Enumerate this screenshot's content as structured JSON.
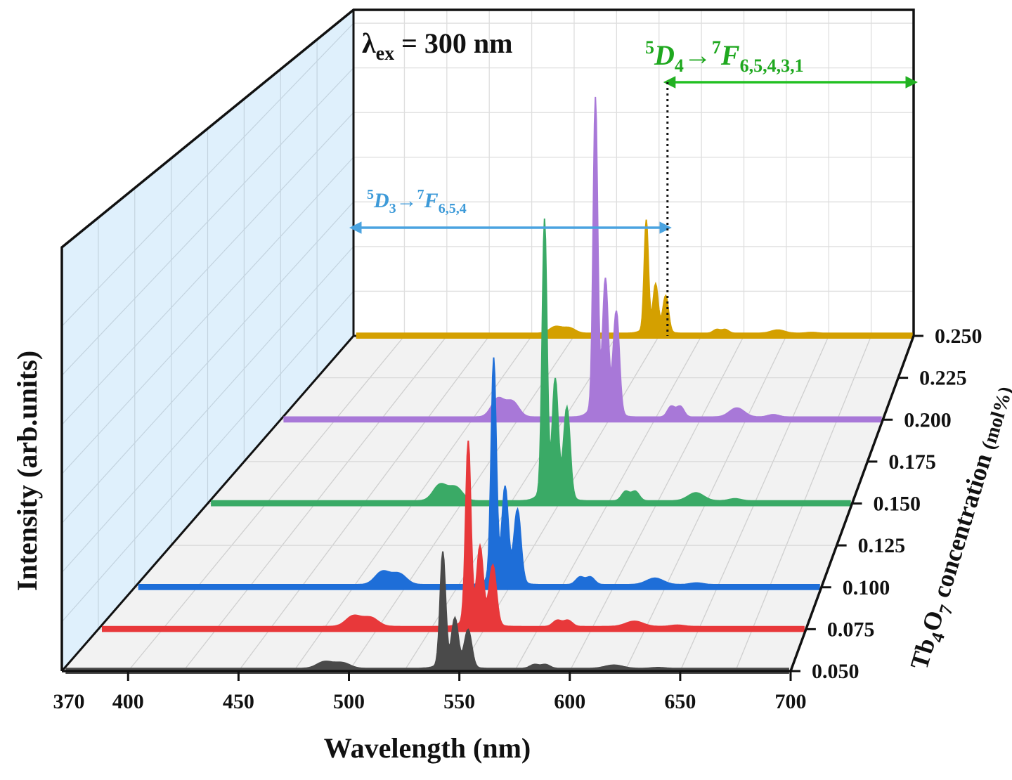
{
  "chart_data": {
    "type": "line",
    "style": "3D waterfall, filled spectra",
    "title": "",
    "excitation": {
      "symbol": "λ",
      "subscript": "ex",
      "text": " = 300 nm"
    },
    "xlabel": "Wavelength (nm)",
    "ylabel": "Intensity (arb.units)",
    "zlabel": {
      "main": "Tb",
      "sub1": "4",
      "mid": "O",
      "sub2": "7",
      "rest": " concentration ",
      "unit": "(mol%)"
    },
    "xlim": [
      370,
      700
    ],
    "x_ticks": [
      370,
      400,
      450,
      500,
      550,
      600,
      650,
      700
    ],
    "x_tick_labels": [
      "370",
      "400",
      "450",
      "500",
      "550",
      "600",
      "650",
      "700"
    ],
    "z_ticks": [
      "0.050",
      "0.075",
      "0.100",
      "0.125",
      "0.150",
      "0.175",
      "0.200",
      "0.225",
      "0.250"
    ],
    "annotations": [
      {
        "id": "d3",
        "sup1": "5",
        "main1": "D",
        "sub1": "3",
        "arrow": "→",
        "sup2": "7",
        "main2": "F",
        "sub2": "6,5,4",
        "range_nm": [
          370,
          555
        ],
        "color": "#4aa3e0"
      },
      {
        "id": "d4",
        "sup1": "5",
        "main1": "D",
        "sub1": "4",
        "arrow": "→",
        "sup2": "7",
        "main2": "F",
        "sub2": "6,5,4,3,1",
        "range_nm": [
          555,
          700
        ],
        "color": "#22b022"
      }
    ],
    "peaks": [
      {
        "center": 489,
        "width": 3.5,
        "rel": 0.06
      },
      {
        "center": 497,
        "width": 3.5,
        "rel": 0.05
      },
      {
        "center": 542.5,
        "width": 1.2,
        "rel": 1.0
      },
      {
        "center": 548,
        "width": 1.4,
        "rel": 0.38
      },
      {
        "center": 554,
        "width": 1.6,
        "rel": 0.32
      },
      {
        "center": 547,
        "width": 5.0,
        "rel": 0.08
      },
      {
        "center": 584,
        "width": 2.0,
        "rel": 0.035
      },
      {
        "center": 589,
        "width": 2.0,
        "rel": 0.035
      },
      {
        "center": 620,
        "width": 4.0,
        "rel": 0.03
      },
      {
        "center": 640,
        "width": 3.0,
        "rel": 0.008
      }
    ],
    "series": [
      {
        "name": "0.050",
        "color": "#4a4a4a",
        "peak_intensity": 0.34
      },
      {
        "name": "0.075",
        "color": "#e8383a",
        "peak_intensity": 0.54
      },
      {
        "name": "0.100",
        "color": "#1e6ed8",
        "peak_intensity": 0.66
      },
      {
        "name": "0.150",
        "color": "#3aaa66",
        "peak_intensity": 0.82
      },
      {
        "name": "0.200",
        "color": "#a878d8",
        "peak_intensity": 0.93
      },
      {
        "name": "0.250",
        "color": "#d4a000",
        "peak_intensity": 0.33
      }
    ]
  }
}
